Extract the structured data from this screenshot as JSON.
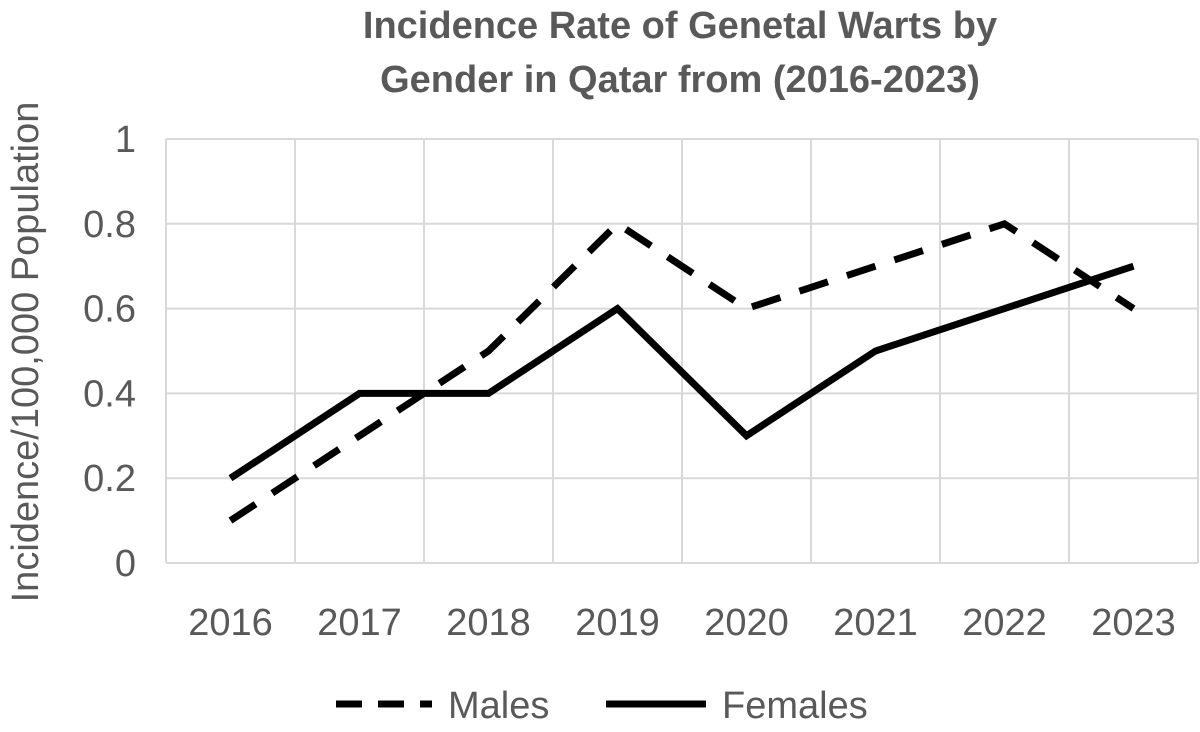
{
  "chart_data": {
    "type": "line",
    "title": [
      "Incidence Rate of Genetal Warts by",
      "Gender in Qatar from (2016-2023)"
    ],
    "xlabel": "",
    "ylabel": "Incidence/100,000 Population",
    "categories": [
      "2016",
      "2017",
      "2018",
      "2019",
      "2020",
      "2021",
      "2022",
      "2023"
    ],
    "ylim": [
      0,
      1
    ],
    "yticks": [
      "0",
      "0.2",
      "0.4",
      "0.6",
      "0.8",
      "1"
    ],
    "grid": true,
    "legend_position": "bottom",
    "series": [
      {
        "name": "Males",
        "style": "dashed",
        "color": "#000000",
        "values": [
          0.1,
          0.3,
          0.5,
          0.8,
          0.6,
          0.7,
          0.8,
          0.6
        ]
      },
      {
        "name": "Females",
        "style": "solid",
        "color": "#000000",
        "values": [
          0.2,
          0.4,
          0.4,
          0.6,
          0.3,
          0.5,
          0.6,
          0.7
        ]
      }
    ],
    "colors": {
      "text": "#595959",
      "grid": "#d9d9d9",
      "line": "#000000"
    }
  }
}
